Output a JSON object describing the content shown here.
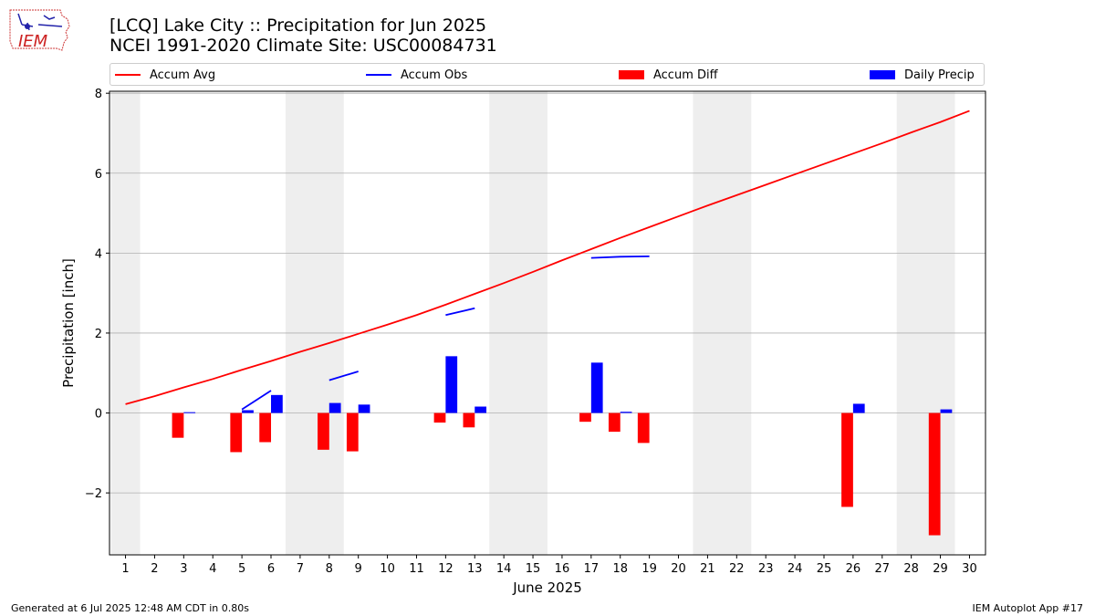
{
  "header": {
    "logo_text": "IEM",
    "title_line1": "[LCQ] Lake City :: Precipitation for Jun 2025",
    "title_line2": "NCEI 1991-2020 Climate Site: USC00084731"
  },
  "footer": {
    "left": "Generated at 6 Jul 2025 12:48 AM CDT in 0.80s",
    "right": "IEM Autoplot App #17"
  },
  "colors": {
    "avg": "#ff0000",
    "obs": "#0000ff",
    "diff": "#ff0000",
    "daily": "#0000ff",
    "weekend_band": "#eeeeee",
    "grid": "#b0b0b0"
  },
  "chart_data": {
    "type": "bar",
    "xlabel": "June 2025",
    "ylabel": "Precipitation [inch]",
    "ylim": [
      -3.55,
      8.05
    ],
    "yticks": [
      -2,
      0,
      2,
      4,
      6,
      8
    ],
    "yticklabels": [
      "−2",
      "0",
      "2",
      "4",
      "6",
      "8"
    ],
    "grid": true,
    "legend_position": "top",
    "x": [
      1,
      2,
      3,
      4,
      5,
      6,
      7,
      8,
      9,
      10,
      11,
      12,
      13,
      14,
      15,
      16,
      17,
      18,
      19,
      20,
      21,
      22,
      23,
      24,
      25,
      26,
      27,
      28,
      29,
      30
    ],
    "xticklabels": [
      "1",
      "2",
      "3",
      "4",
      "5",
      "6",
      "7",
      "8",
      "9",
      "10",
      "11",
      "12",
      "13",
      "14",
      "15",
      "16",
      "17",
      "18",
      "19",
      "20",
      "21",
      "22",
      "23",
      "24",
      "25",
      "26",
      "27",
      "28",
      "29",
      "30"
    ],
    "weekend_bands": [
      [
        1,
        1
      ],
      [
        7,
        8
      ],
      [
        14,
        15
      ],
      [
        21,
        22
      ],
      [
        28,
        29
      ]
    ],
    "legend": [
      "Accum Avg",
      "Accum Obs",
      "Accum Diff",
      "Daily Precip"
    ],
    "series": [
      {
        "name": "Accum Avg",
        "kind": "line",
        "values": [
          0.22,
          0.42,
          0.64,
          0.85,
          1.08,
          1.3,
          1.53,
          1.75,
          1.98,
          2.21,
          2.45,
          2.71,
          2.98,
          3.25,
          3.53,
          3.82,
          4.1,
          4.38,
          4.65,
          4.92,
          5.19,
          5.45,
          5.71,
          5.97,
          6.23,
          6.49,
          6.75,
          7.02,
          7.28,
          7.56
        ]
      },
      {
        "name": "Accum Obs",
        "kind": "segments",
        "segments": [
          {
            "x": [
              5,
              6
            ],
            "values": [
              0.09,
              0.56
            ]
          },
          {
            "x": [
              8,
              9
            ],
            "values": [
              0.82,
              1.04
            ]
          },
          {
            "x": [
              12,
              13
            ],
            "values": [
              2.45,
              2.62
            ]
          },
          {
            "x": [
              17,
              18,
              19
            ],
            "values": [
              3.88,
              3.91,
              3.92
            ]
          }
        ]
      },
      {
        "name": "Accum Diff",
        "kind": "bar",
        "x": [
          3,
          5,
          6,
          8,
          9,
          12,
          13,
          17,
          18,
          19,
          26,
          29
        ],
        "values": [
          -0.62,
          -0.98,
          -0.73,
          -0.92,
          -0.96,
          -0.24,
          -0.36,
          -0.22,
          -0.47,
          -0.75,
          -2.35,
          -3.06
        ]
      },
      {
        "name": "Daily Precip",
        "kind": "bar",
        "x": [
          3,
          5,
          6,
          8,
          9,
          12,
          13,
          17,
          18,
          26,
          29
        ],
        "values": [
          0.02,
          0.07,
          0.45,
          0.25,
          0.21,
          1.42,
          0.16,
          1.26,
          0.03,
          0.23,
          0.09
        ]
      }
    ]
  }
}
